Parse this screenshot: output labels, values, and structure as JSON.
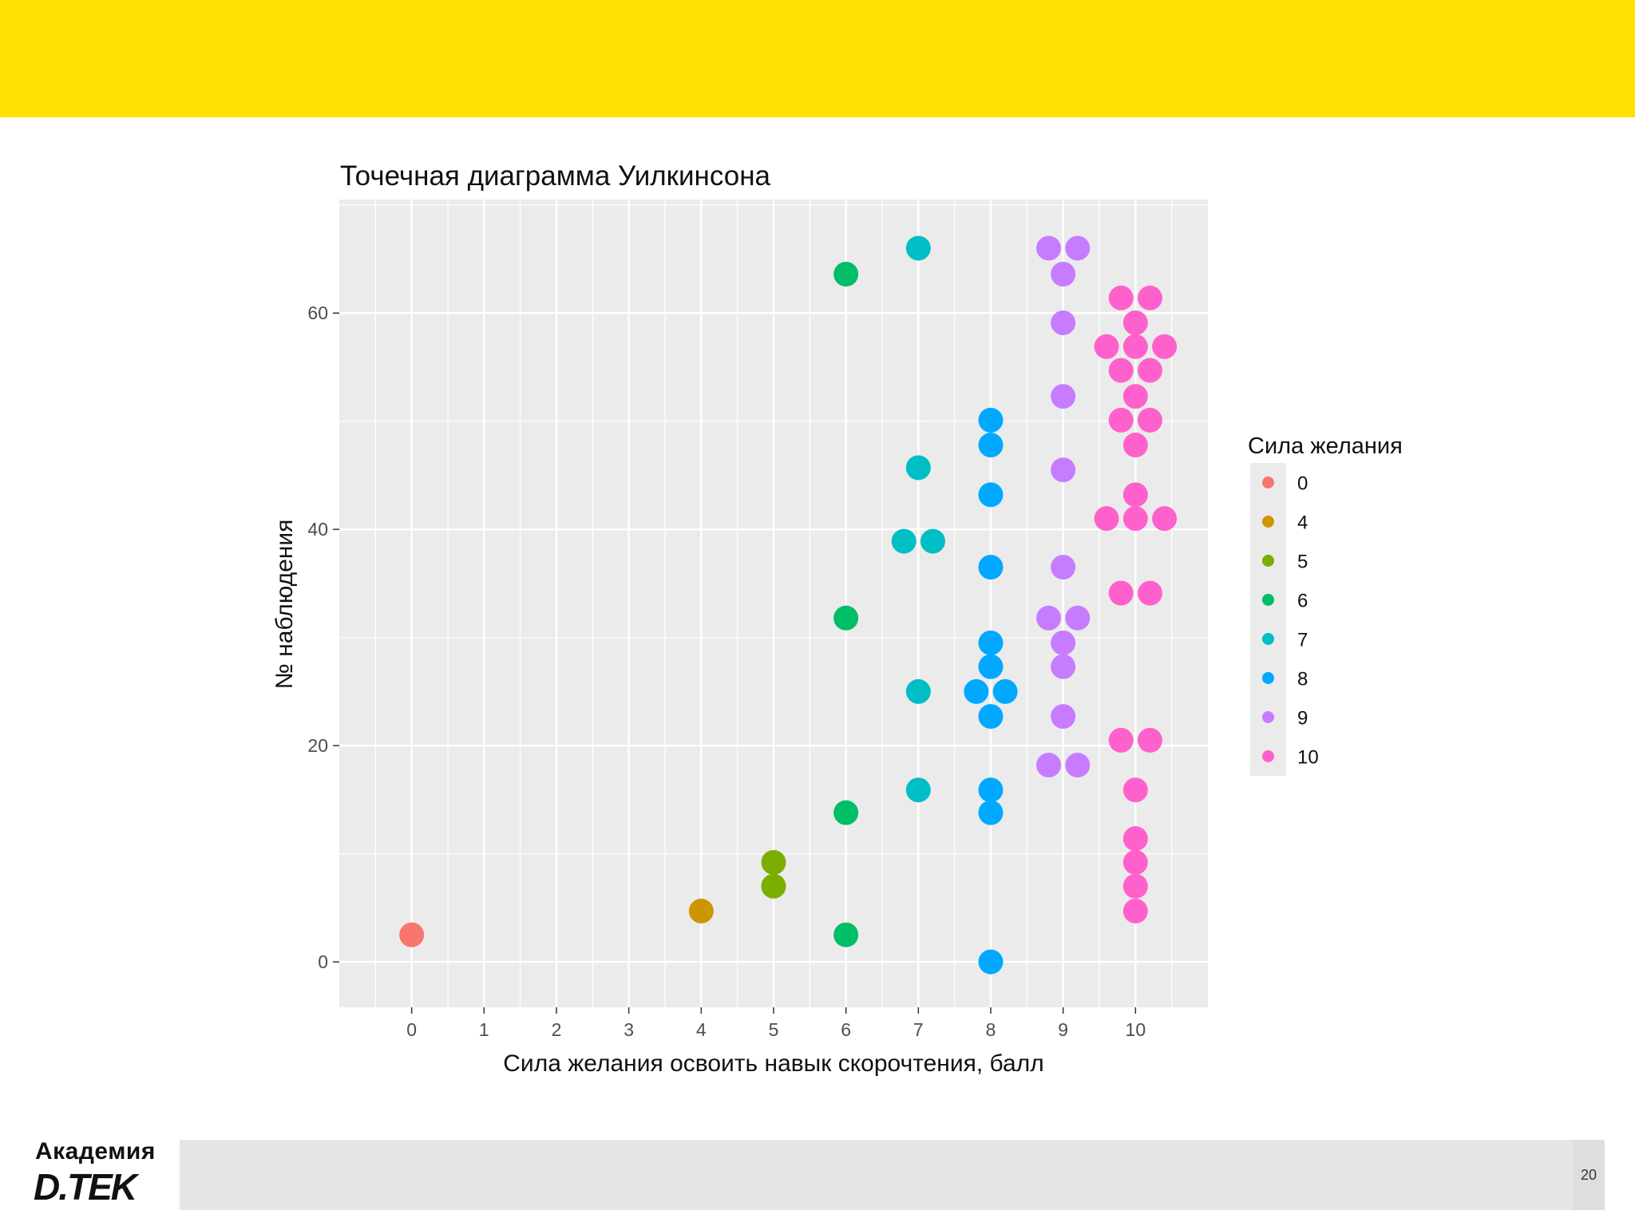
{
  "logo": {
    "line1": "Академия",
    "line2": "D.TEK"
  },
  "page_number": "20",
  "colors": {
    "banner": "#FFE000",
    "footer": "#e6e6e6",
    "panel": "#ebebeb",
    "grid": "#ffffff"
  },
  "chart_data": {
    "type": "scatter",
    "title": "Точечная диаграмма Уилкинсона",
    "xlabel": "Сила желания освоить навык скорочтения, балл",
    "ylabel": "№ наблюдения",
    "xlim": [
      -1,
      11
    ],
    "ylim": [
      -4.2,
      70.5
    ],
    "x_ticks": [
      "0",
      "1",
      "2",
      "3",
      "4",
      "5",
      "6",
      "7",
      "8",
      "9",
      "10"
    ],
    "y_ticks": [
      "0",
      "20",
      "40",
      "60"
    ],
    "grid": true,
    "legend": {
      "title": "Сила желания",
      "position": "right",
      "entries": [
        {
          "label": "0",
          "color": "#F8766D"
        },
        {
          "label": "4",
          "color": "#CD9600"
        },
        {
          "label": "5",
          "color": "#7CAE00"
        },
        {
          "label": "6",
          "color": "#00BE67"
        },
        {
          "label": "7",
          "color": "#00BFC4"
        },
        {
          "label": "8",
          "color": "#00A9FF"
        },
        {
          "label": "9",
          "color": "#C77CFF"
        },
        {
          "label": "10",
          "color": "#FF61CC"
        }
      ]
    },
    "series": [
      {
        "name": "0",
        "color": "#F8766D",
        "points": [
          {
            "x": 0,
            "y": 2.5
          }
        ]
      },
      {
        "name": "4",
        "color": "#CD9600",
        "points": [
          {
            "x": 4,
            "y": 4.7
          }
        ]
      },
      {
        "name": "5",
        "color": "#7CAE00",
        "points": [
          {
            "x": 5,
            "y": 7
          },
          {
            "x": 5,
            "y": 9.2
          }
        ]
      },
      {
        "name": "6",
        "color": "#00BE67",
        "points": [
          {
            "x": 6,
            "y": 2.5
          },
          {
            "x": 6,
            "y": 13.8
          },
          {
            "x": 6,
            "y": 31.8
          },
          {
            "x": 6,
            "y": 63.6
          }
        ]
      },
      {
        "name": "7",
        "color": "#00BFC4",
        "points": [
          {
            "x": 7,
            "y": 15.9
          },
          {
            "x": 7,
            "y": 25
          },
          {
            "x": 6.8,
            "y": 38.9
          },
          {
            "x": 7.2,
            "y": 38.9
          },
          {
            "x": 7,
            "y": 45.7
          },
          {
            "x": 7,
            "y": 66
          }
        ]
      },
      {
        "name": "8",
        "color": "#00A9FF",
        "points": [
          {
            "x": 8,
            "y": 0
          },
          {
            "x": 8,
            "y": 13.8
          },
          {
            "x": 8,
            "y": 15.9
          },
          {
            "x": 8,
            "y": 22.7
          },
          {
            "x": 7.8,
            "y": 25
          },
          {
            "x": 8.2,
            "y": 25
          },
          {
            "x": 8,
            "y": 27.3
          },
          {
            "x": 8,
            "y": 29.5
          },
          {
            "x": 8,
            "y": 36.5
          },
          {
            "x": 8,
            "y": 43.2
          },
          {
            "x": 8,
            "y": 47.8
          },
          {
            "x": 8,
            "y": 50.1
          }
        ]
      },
      {
        "name": "9",
        "color": "#C77CFF",
        "points": [
          {
            "x": 8.8,
            "y": 18.2
          },
          {
            "x": 9.2,
            "y": 18.2
          },
          {
            "x": 9,
            "y": 22.7
          },
          {
            "x": 9,
            "y": 27.3
          },
          {
            "x": 9,
            "y": 29.5
          },
          {
            "x": 8.8,
            "y": 31.8
          },
          {
            "x": 9.2,
            "y": 31.8
          },
          {
            "x": 9,
            "y": 36.5
          },
          {
            "x": 9,
            "y": 45.5
          },
          {
            "x": 9,
            "y": 52.3
          },
          {
            "x": 9,
            "y": 59.1
          },
          {
            "x": 9,
            "y": 63.6
          },
          {
            "x": 8.8,
            "y": 66
          },
          {
            "x": 9.2,
            "y": 66
          }
        ]
      },
      {
        "name": "10",
        "color": "#FF61CC",
        "points": [
          {
            "x": 10,
            "y": 4.7
          },
          {
            "x": 10,
            "y": 7
          },
          {
            "x": 10,
            "y": 9.2
          },
          {
            "x": 10,
            "y": 11.4
          },
          {
            "x": 10,
            "y": 15.9
          },
          {
            "x": 9.8,
            "y": 20.5
          },
          {
            "x": 10.2,
            "y": 20.5
          },
          {
            "x": 9.8,
            "y": 34.1
          },
          {
            "x": 10.2,
            "y": 34.1
          },
          {
            "x": 9.6,
            "y": 41
          },
          {
            "x": 10,
            "y": 41
          },
          {
            "x": 10.4,
            "y": 41
          },
          {
            "x": 10,
            "y": 43.2
          },
          {
            "x": 10,
            "y": 47.8
          },
          {
            "x": 9.8,
            "y": 50.1
          },
          {
            "x": 10.2,
            "y": 50.1
          },
          {
            "x": 10,
            "y": 52.3
          },
          {
            "x": 9.8,
            "y": 54.7
          },
          {
            "x": 10.2,
            "y": 54.7
          },
          {
            "x": 9.6,
            "y": 56.9
          },
          {
            "x": 10,
            "y": 56.9
          },
          {
            "x": 10.4,
            "y": 56.9
          },
          {
            "x": 10,
            "y": 59.1
          },
          {
            "x": 9.8,
            "y": 61.4
          },
          {
            "x": 10.2,
            "y": 61.4
          }
        ]
      }
    ]
  }
}
